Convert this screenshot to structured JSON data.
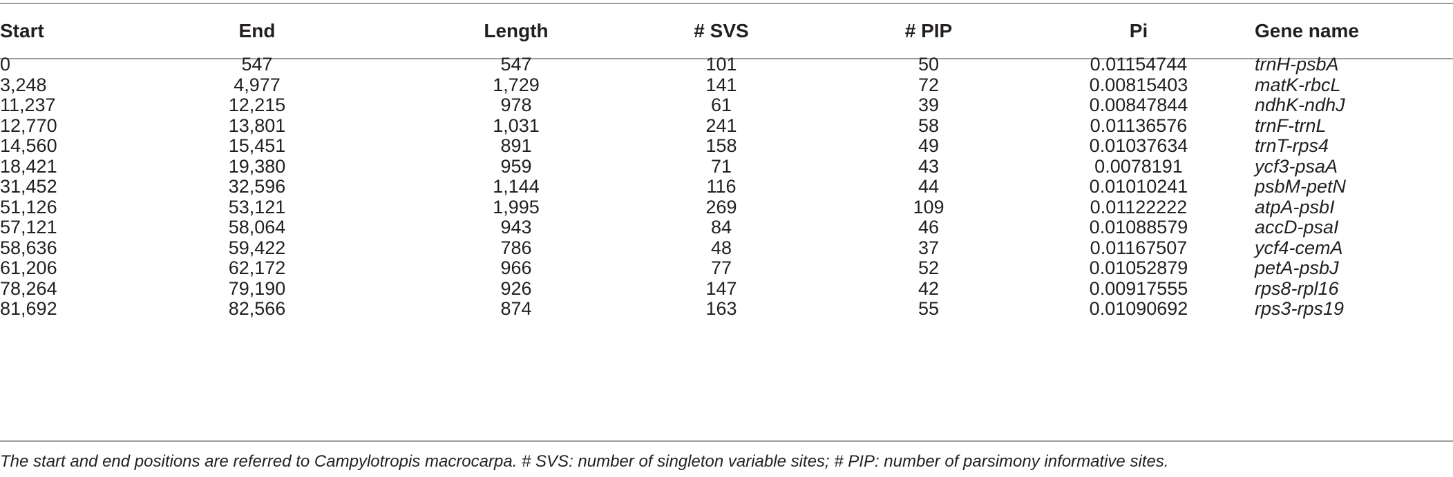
{
  "table": {
    "headers": [
      "Start",
      "End",
      "Length",
      "# SVS",
      "# PIP",
      "Pi",
      "Gene name"
    ],
    "rows": [
      [
        "0",
        "547",
        "547",
        "101",
        "50",
        "0.01154744",
        "trnH-psbA"
      ],
      [
        "3,248",
        "4,977",
        "1,729",
        "141",
        "72",
        "0.00815403",
        "matK-rbcL"
      ],
      [
        "11,237",
        "12,215",
        "978",
        "61",
        "39",
        "0.00847844",
        "ndhK-ndhJ"
      ],
      [
        "12,770",
        "13,801",
        "1,031",
        "241",
        "58",
        "0.01136576",
        "trnF-trnL"
      ],
      [
        "14,560",
        "15,451",
        "891",
        "158",
        "49",
        "0.01037634",
        "trnT-rps4"
      ],
      [
        "18,421",
        "19,380",
        "959",
        "71",
        "43",
        "0.0078191",
        "ycf3-psaA"
      ],
      [
        "31,452",
        "32,596",
        "1,144",
        "116",
        "44",
        "0.01010241",
        "psbM-petN"
      ],
      [
        "51,126",
        "53,121",
        "1,995",
        "269",
        "109",
        "0.01122222",
        "atpA-psbI"
      ],
      [
        "57,121",
        "58,064",
        "943",
        "84",
        "46",
        "0.01088579",
        "accD-psaI"
      ],
      [
        "58,636",
        "59,422",
        "786",
        "48",
        "37",
        "0.01167507",
        "ycf4-cemA"
      ],
      [
        "61,206",
        "62,172",
        "966",
        "77",
        "52",
        "0.01052879",
        "petA-psbJ"
      ],
      [
        "78,264",
        "79,190",
        "926",
        "147",
        "42",
        "0.00917555",
        "rps8-rpl16"
      ],
      [
        "81,692",
        "82,566",
        "874",
        "163",
        "55",
        "0.01090692",
        "rps3-rps19"
      ]
    ],
    "footnote": "The start and end positions are referred to Campylotropis macrocarpa. # SVS: number of singleton variable sites; # PIP: number of parsimony informative sites."
  }
}
